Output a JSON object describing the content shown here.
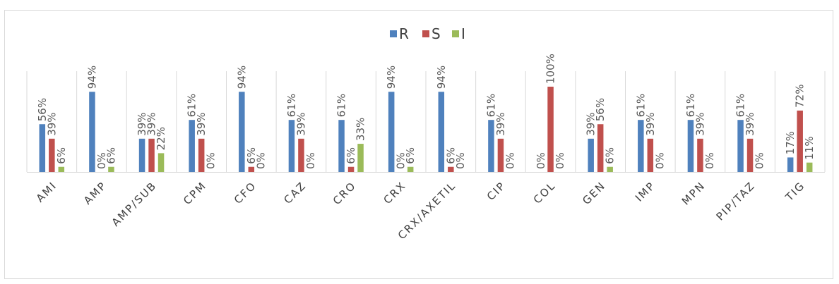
{
  "chart_data": {
    "type": "bar",
    "title": "",
    "xlabel": "",
    "ylabel": "",
    "ylim": [
      0,
      100
    ],
    "legend_position": "top-center",
    "grid": false,
    "categories": [
      "AMI",
      "AMP",
      "AMP/SUB",
      "CPM",
      "CFO",
      "CAZ",
      "CRO",
      "CRX",
      "CRX/AXETIL",
      "CIP",
      "COL",
      "GEN",
      "IMP",
      "MPN",
      "PIP/TAZ",
      "TIG"
    ],
    "series": [
      {
        "name": "R",
        "color": "#4f81bd",
        "values": [
          56,
          94,
          39,
          61,
          94,
          61,
          61,
          94,
          94,
          61,
          0,
          39,
          61,
          61,
          61,
          17
        ]
      },
      {
        "name": "S",
        "color": "#c0504d",
        "values": [
          39,
          0,
          39,
          39,
          6,
          39,
          6,
          0,
          6,
          39,
          100,
          56,
          39,
          39,
          39,
          72
        ]
      },
      {
        "name": "I",
        "color": "#9bbb59",
        "values": [
          6,
          6,
          22,
          0,
          0,
          0,
          33,
          6,
          0,
          0,
          0,
          6,
          0,
          0,
          0,
          11
        ]
      }
    ],
    "data_labels": [
      [
        "56%",
        "94%",
        "39%",
        "61%",
        "94%",
        "61%",
        "61%",
        "94%",
        "94%",
        "61%",
        "0%",
        "39%",
        "61%",
        "61%",
        "61%",
        "17%"
      ],
      [
        "39%",
        "0%",
        "39%",
        "39%",
        "6%",
        "39%",
        "6%",
        "0%",
        "6%",
        "39%",
        "100%",
        "56%",
        "39%",
        "39%",
        "39%",
        "72%"
      ],
      [
        "6%",
        "6%",
        "22%",
        "0%",
        "0%",
        "0%",
        "33%",
        "6%",
        "0%",
        "0%",
        "0%",
        "6%",
        "0%",
        "0%",
        "0%",
        "11%"
      ]
    ]
  }
}
